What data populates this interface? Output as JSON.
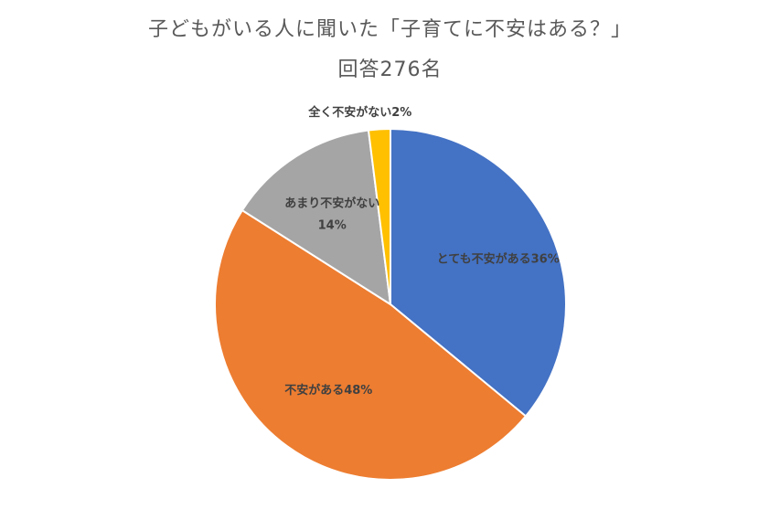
{
  "chart_data": {
    "type": "pie",
    "title": "子どもがいる人に聞いた「子育てに不安はある？」",
    "subtitle": "回答276名",
    "slices": [
      {
        "label": "とても不安がある",
        "value": 36,
        "value_text": "36%",
        "color": "#4472C4"
      },
      {
        "label": "不安がある",
        "value": 48,
        "value_text": "48%",
        "color": "#ED7D31"
      },
      {
        "label": "あまり不安がない",
        "value": 14,
        "value_text": "14%",
        "color": "#A5A5A5"
      },
      {
        "label": "全く不安がない",
        "value": 2,
        "value_text": "2%",
        "color": "#FFC000"
      }
    ]
  }
}
